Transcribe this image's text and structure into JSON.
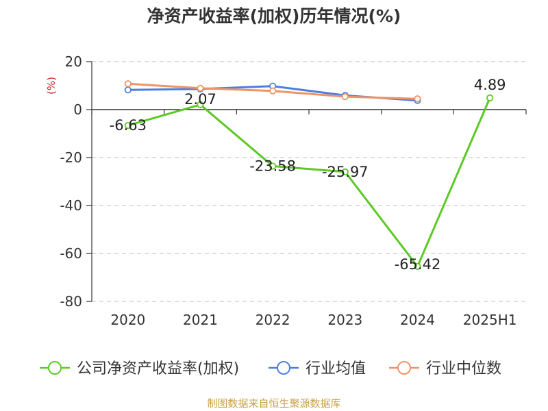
{
  "chart_data": {
    "type": "line",
    "title": "净资产收益率(加权)历年情况(%)",
    "ylabel": "(%)",
    "xlabel": "",
    "categories": [
      "2020",
      "2021",
      "2022",
      "2023",
      "2024",
      "2025H1"
    ],
    "ylim": [
      -80,
      20
    ],
    "yticks": [
      20,
      0,
      -20,
      -40,
      -60,
      -80
    ],
    "grid": "horizontal-dashed",
    "legend_position": "bottom",
    "series": [
      {
        "name": "公司净资产收益率(加权)",
        "color": "#5cc925",
        "values": [
          -6.63,
          2.07,
          -23.58,
          -25.97,
          -65.42,
          4.89
        ],
        "labels": [
          "-6.63",
          "2.07",
          "-23.58",
          "-25.97",
          "-65.42",
          "4.89"
        ]
      },
      {
        "name": "行业均值",
        "color": "#4a7fe0",
        "values": [
          8.2,
          8.6,
          9.8,
          5.9,
          3.8,
          null
        ]
      },
      {
        "name": "行业中位数",
        "color": "#f09364",
        "values": [
          10.8,
          8.9,
          7.8,
          5.4,
          4.5,
          null
        ]
      }
    ]
  },
  "colors": {
    "title": "#333333",
    "unit": "#cc2222",
    "source": "#c8a046",
    "axis": "#333333",
    "grid": "#cccccc"
  },
  "source_text": "制图数据来自恒生聚源数据库"
}
